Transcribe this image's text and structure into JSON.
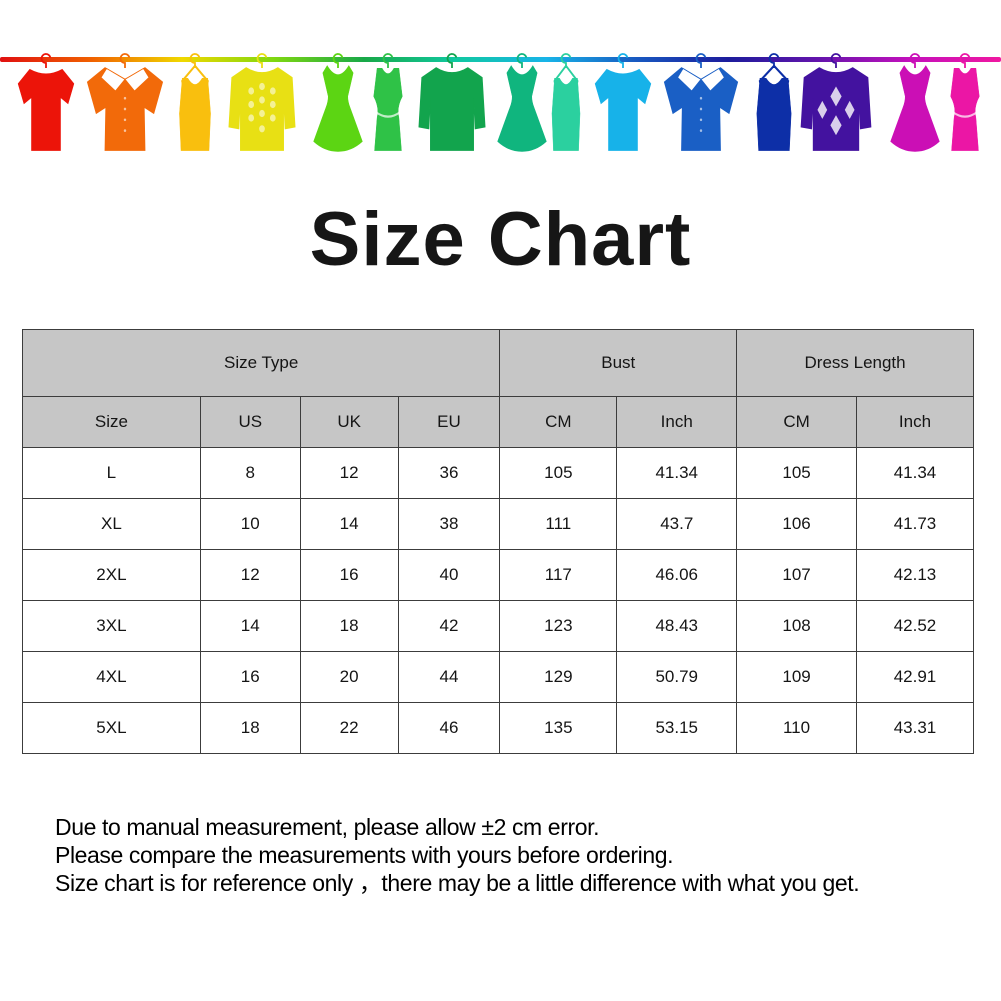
{
  "title": "Size Chart",
  "banner": {
    "clothesline_colors": [
      "#e01010",
      "#f06000",
      "#f0d800",
      "#80d810",
      "#18a848",
      "#10c8a0",
      "#18b4e8",
      "#1858c0",
      "#1c1c9c",
      "#6414ac",
      "#c410bc",
      "#f018a0"
    ],
    "items": [
      {
        "name": "red-tshirt",
        "type": "tshirt",
        "color": "#ec1409"
      },
      {
        "name": "orange-shirt",
        "type": "shirt",
        "color": "#f26a0a"
      },
      {
        "name": "amber-tank-top",
        "type": "tank",
        "color": "#f9bf0e"
      },
      {
        "name": "yellow-polka-sweater",
        "type": "sweater",
        "pattern": "dots",
        "color": "#e8e014"
      },
      {
        "name": "green-dress",
        "type": "dress",
        "color": "#5cd513"
      },
      {
        "name": "green-tank-dress",
        "type": "tankdress",
        "color": "#2fc247"
      },
      {
        "name": "green-sweater",
        "type": "sweater",
        "color": "#12a44d"
      },
      {
        "name": "teal-dress",
        "type": "dress",
        "color": "#10b57e"
      },
      {
        "name": "teal-tank-top",
        "type": "tank",
        "color": "#2bd09f"
      },
      {
        "name": "cyan-tshirt",
        "type": "tshirt",
        "color": "#17b2e9"
      },
      {
        "name": "blue-shirt",
        "type": "shirt",
        "color": "#1a5fc5"
      },
      {
        "name": "navy-tank-top",
        "type": "tank",
        "color": "#0d2fa7"
      },
      {
        "name": "purple-argyle-sweater",
        "type": "sweater",
        "pattern": "argyle",
        "color": "#43129f"
      },
      {
        "name": "magenta-dress",
        "type": "dress",
        "color": "#cb0fb5"
      },
      {
        "name": "pink-tank-dress",
        "type": "tankdress",
        "color": "#eb16a5"
      }
    ]
  },
  "table": {
    "group_headers": [
      {
        "label": "Size Type",
        "span": 4
      },
      {
        "label": "Bust",
        "span": 2
      },
      {
        "label": "Dress Length",
        "span": 2
      }
    ],
    "columns": [
      "Size",
      "US",
      "UK",
      "EU",
      "CM",
      "Inch",
      "CM",
      "Inch"
    ],
    "rows": [
      [
        "L",
        "8",
        "12",
        "36",
        "105",
        "41.34",
        "105",
        "41.34"
      ],
      [
        "XL",
        "10",
        "14",
        "38",
        "111",
        "43.7",
        "106",
        "41.73"
      ],
      [
        "2XL",
        "12",
        "16",
        "40",
        "117",
        "46.06",
        "107",
        "42.13"
      ],
      [
        "3XL",
        "14",
        "18",
        "42",
        "123",
        "48.43",
        "108",
        "42.52"
      ],
      [
        "4XL",
        "16",
        "20",
        "44",
        "129",
        "50.79",
        "109",
        "42.91"
      ],
      [
        "5XL",
        "18",
        "22",
        "46",
        "135",
        "53.15",
        "110",
        "43.31"
      ]
    ]
  },
  "notes": {
    "lines": [
      "Due to manual measurement, please allow ±2 cm error.",
      "Please compare the measurements with yours before ordering.",
      "Size chart is for reference only ，there may be a little difference with what you get."
    ]
  },
  "colors": {
    "header_bg": "#c6c6c6",
    "table_border": "#3c3c3c",
    "title_text": "#161616"
  }
}
